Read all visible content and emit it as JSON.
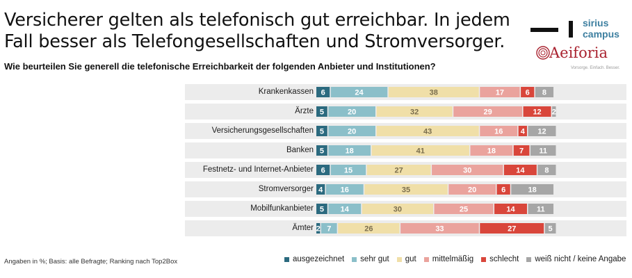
{
  "header": {
    "title": "Versicherer gelten als telefonisch gut erreichbar. In jedem Fall besser als Telefongesellschaften und Stromversorger.",
    "subtitle": "Wie beurteilen Sie generell die telefonische Erreichbarkeit der folgenden Anbieter und Institutionen?"
  },
  "logos": {
    "sirius_line1": "sirius",
    "sirius_line2": "campus",
    "aeiforia_name": "Aeiforia",
    "aeiforia_tagline": "Vorsorge. Einfach. Besser."
  },
  "footnote": "Angaben in %; Basis: alle Befragte; Ranking nach Top2Box",
  "chart_data": {
    "type": "bar",
    "orientation": "horizontal",
    "stacked": true,
    "categories": [
      "Krankenkassen",
      "Ärzte",
      "Versicherungsgesellschaften",
      "Banken",
      "Festnetz- und Internet-Anbieter",
      "Stromversorger",
      "Mobilfunkanbieter",
      "Ämter"
    ],
    "series": [
      {
        "name": "ausgezeichnet",
        "color": "#2b6a7f",
        "values": [
          6,
          5,
          5,
          5,
          6,
          4,
          5,
          2
        ]
      },
      {
        "name": "sehr gut",
        "color": "#8bbfc9",
        "values": [
          24,
          20,
          20,
          18,
          15,
          16,
          14,
          7
        ]
      },
      {
        "name": "gut",
        "color": "#f0dfa8",
        "values": [
          38,
          32,
          43,
          41,
          27,
          35,
          30,
          26
        ]
      },
      {
        "name": "mittelmäßig",
        "color": "#eaa39d",
        "values": [
          17,
          29,
          16,
          18,
          30,
          20,
          25,
          33
        ]
      },
      {
        "name": "schlecht",
        "color": "#d9463b",
        "values": [
          6,
          12,
          4,
          7,
          14,
          6,
          14,
          27
        ]
      },
      {
        "name": "weiß nicht / keine Angabe",
        "color": "#a6a6a6",
        "values": [
          8,
          2,
          12,
          11,
          8,
          18,
          11,
          5
        ]
      }
    ],
    "label_colors": [
      "#ffffff",
      "#ffffff",
      "#7a6e4e",
      "#ffffff",
      "#ffffff",
      "#ffffff"
    ],
    "unit": "%",
    "xlim": [
      0,
      100
    ],
    "legend": "bottom-right",
    "grid": false
  }
}
